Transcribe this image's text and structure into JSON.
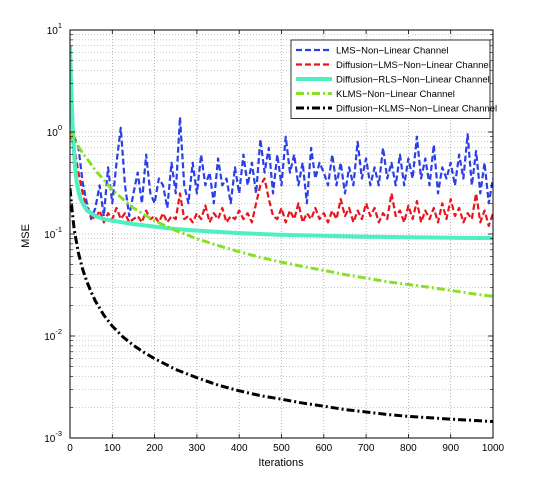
{
  "chart_data": {
    "type": "line",
    "title": "",
    "xlabel": "Iterations",
    "ylabel": "MSE",
    "xlim": [
      0,
      1000
    ],
    "ylim": [
      0.001,
      10
    ],
    "yscale": "log",
    "grid": true,
    "legend_position": "top-right",
    "x_ticks": [
      0,
      100,
      200,
      300,
      400,
      500,
      600,
      700,
      800,
      900,
      1000
    ],
    "y_ticks": [
      {
        "value": 0.001,
        "base": "10",
        "exp": "-3"
      },
      {
        "value": 0.01,
        "base": "10",
        "exp": "-2"
      },
      {
        "value": 0.1,
        "base": "10",
        "exp": "-1"
      },
      {
        "value": 1,
        "base": "10",
        "exp": "0"
      },
      {
        "value": 10,
        "base": "10",
        "exp": "1"
      }
    ],
    "series": [
      {
        "name": "LMS−Non−Linear Channel",
        "color": "#2b3fe8",
        "style": "dashed",
        "x": [
          0,
          5,
          10,
          20,
          30,
          40,
          50,
          60,
          70,
          80,
          90,
          100,
          110,
          120,
          130,
          140,
          150,
          160,
          170,
          180,
          190,
          200,
          210,
          220,
          230,
          240,
          250,
          260,
          270,
          280,
          290,
          300,
          310,
          320,
          330,
          340,
          350,
          360,
          370,
          380,
          390,
          400,
          410,
          420,
          430,
          440,
          450,
          460,
          470,
          480,
          490,
          500,
          510,
          520,
          530,
          540,
          550,
          560,
          570,
          580,
          590,
          600,
          610,
          620,
          630,
          640,
          650,
          660,
          670,
          680,
          690,
          700,
          710,
          720,
          730,
          740,
          750,
          760,
          770,
          780,
          790,
          800,
          810,
          820,
          830,
          840,
          850,
          860,
          870,
          880,
          890,
          900,
          910,
          920,
          930,
          940,
          950,
          960,
          970,
          980,
          990,
          1000
        ],
        "y": [
          2.0,
          1.2,
          0.9,
          0.7,
          0.32,
          0.2,
          0.14,
          0.18,
          0.3,
          0.15,
          0.45,
          0.2,
          0.5,
          1.1,
          0.3,
          0.15,
          0.25,
          0.4,
          0.2,
          0.6,
          0.25,
          0.2,
          0.35,
          0.3,
          0.18,
          0.5,
          0.25,
          1.4,
          0.3,
          0.2,
          0.5,
          0.25,
          0.6,
          0.3,
          0.4,
          0.2,
          0.55,
          0.3,
          0.35,
          0.2,
          0.45,
          0.25,
          0.6,
          0.3,
          0.5,
          0.25,
          0.85,
          0.4,
          0.7,
          0.25,
          0.6,
          0.3,
          0.9,
          0.4,
          0.6,
          0.3,
          0.5,
          0.2,
          0.7,
          0.35,
          0.5,
          0.4,
          0.3,
          0.6,
          0.3,
          0.5,
          0.25,
          0.45,
          0.3,
          0.8,
          0.35,
          0.55,
          0.3,
          0.45,
          0.3,
          0.7,
          0.35,
          0.5,
          0.3,
          0.6,
          0.3,
          0.55,
          0.35,
          0.9,
          0.35,
          0.55,
          0.3,
          0.75,
          0.25,
          0.45,
          0.35,
          0.5,
          0.3,
          0.6,
          0.35,
          0.95,
          0.3,
          0.65,
          0.25,
          0.5,
          0.2,
          0.35
        ]
      },
      {
        "name": "Diffusion−LMS−Non−Linear Channel",
        "color": "#e8141e",
        "style": "dashed",
        "x": [
          0,
          5,
          10,
          20,
          30,
          40,
          50,
          60,
          70,
          80,
          90,
          100,
          110,
          120,
          130,
          140,
          150,
          160,
          170,
          180,
          190,
          200,
          210,
          220,
          230,
          240,
          250,
          260,
          270,
          280,
          290,
          300,
          310,
          320,
          330,
          340,
          350,
          360,
          370,
          380,
          390,
          400,
          410,
          420,
          430,
          440,
          450,
          460,
          470,
          480,
          490,
          500,
          510,
          520,
          530,
          540,
          550,
          560,
          570,
          580,
          590,
          600,
          610,
          620,
          630,
          640,
          650,
          660,
          670,
          680,
          690,
          700,
          710,
          720,
          730,
          740,
          750,
          760,
          770,
          780,
          790,
          800,
          810,
          820,
          830,
          840,
          850,
          860,
          870,
          880,
          890,
          900,
          910,
          920,
          930,
          940,
          950,
          960,
          970,
          980,
          990,
          1000
        ],
        "y": [
          0.9,
          0.85,
          0.7,
          0.4,
          0.25,
          0.18,
          0.15,
          0.14,
          0.17,
          0.13,
          0.16,
          0.14,
          0.18,
          0.14,
          0.16,
          0.13,
          0.14,
          0.15,
          0.13,
          0.17,
          0.14,
          0.15,
          0.13,
          0.16,
          0.13,
          0.15,
          0.14,
          0.25,
          0.14,
          0.15,
          0.13,
          0.16,
          0.14,
          0.19,
          0.13,
          0.16,
          0.14,
          0.18,
          0.13,
          0.15,
          0.14,
          0.17,
          0.14,
          0.16,
          0.13,
          0.2,
          0.3,
          0.35,
          0.22,
          0.15,
          0.14,
          0.18,
          0.13,
          0.17,
          0.14,
          0.2,
          0.13,
          0.16,
          0.14,
          0.18,
          0.14,
          0.16,
          0.13,
          0.17,
          0.14,
          0.22,
          0.15,
          0.18,
          0.13,
          0.17,
          0.14,
          0.2,
          0.15,
          0.18,
          0.13,
          0.16,
          0.14,
          0.25,
          0.15,
          0.17,
          0.13,
          0.19,
          0.14,
          0.21,
          0.13,
          0.17,
          0.14,
          0.18,
          0.13,
          0.2,
          0.14,
          0.22,
          0.15,
          0.18,
          0.13,
          0.16,
          0.14,
          0.25,
          0.13,
          0.17,
          0.12,
          0.16
        ]
      },
      {
        "name": "Diffusion−RLS−Non−Linear Channel",
        "color": "#4df0c0",
        "style": "solid",
        "x": [
          0,
          2,
          5,
          8,
          12,
          16,
          20,
          25,
          30,
          40,
          50,
          60,
          80,
          100,
          150,
          200,
          250,
          300,
          400,
          500,
          600,
          700,
          800,
          900,
          1000
        ],
        "y": [
          7.0,
          3.5,
          1.5,
          0.8,
          0.45,
          0.32,
          0.26,
          0.22,
          0.2,
          0.17,
          0.16,
          0.15,
          0.14,
          0.135,
          0.125,
          0.118,
          0.112,
          0.108,
          0.102,
          0.098,
          0.096,
          0.094,
          0.093,
          0.092,
          0.091
        ]
      },
      {
        "name": "KLMS−Non−Linear Channel",
        "color": "#88e024",
        "style": "dashdot",
        "x": [
          0,
          5,
          10,
          20,
          30,
          40,
          50,
          60,
          80,
          100,
          125,
          150,
          175,
          200,
          250,
          300,
          350,
          400,
          450,
          500,
          550,
          600,
          650,
          700,
          750,
          800,
          850,
          900,
          950,
          1000
        ],
        "y": [
          1.0,
          0.95,
          0.85,
          0.72,
          0.62,
          0.55,
          0.48,
          0.42,
          0.34,
          0.27,
          0.22,
          0.18,
          0.155,
          0.135,
          0.108,
          0.09,
          0.077,
          0.067,
          0.059,
          0.053,
          0.048,
          0.044,
          0.04,
          0.037,
          0.034,
          0.032,
          0.03,
          0.028,
          0.026,
          0.0245
        ]
      },
      {
        "name": "Diffusion−KLMS−Non−Linear Channel",
        "color": "#000000",
        "style": "dashdot",
        "x": [
          0,
          5,
          10,
          20,
          30,
          40,
          50,
          60,
          80,
          100,
          125,
          150,
          175,
          200,
          250,
          300,
          350,
          400,
          450,
          500,
          550,
          600,
          650,
          700,
          750,
          800,
          850,
          900,
          950,
          1000
        ],
        "y": [
          0.28,
          0.17,
          0.11,
          0.065,
          0.045,
          0.034,
          0.027,
          0.022,
          0.016,
          0.0125,
          0.0098,
          0.0081,
          0.0069,
          0.006,
          0.0047,
          0.0039,
          0.0033,
          0.0029,
          0.0026,
          0.0024,
          0.0022,
          0.00205,
          0.0019,
          0.0018,
          0.0017,
          0.00163,
          0.00158,
          0.00153,
          0.00149,
          0.00145
        ]
      }
    ]
  }
}
